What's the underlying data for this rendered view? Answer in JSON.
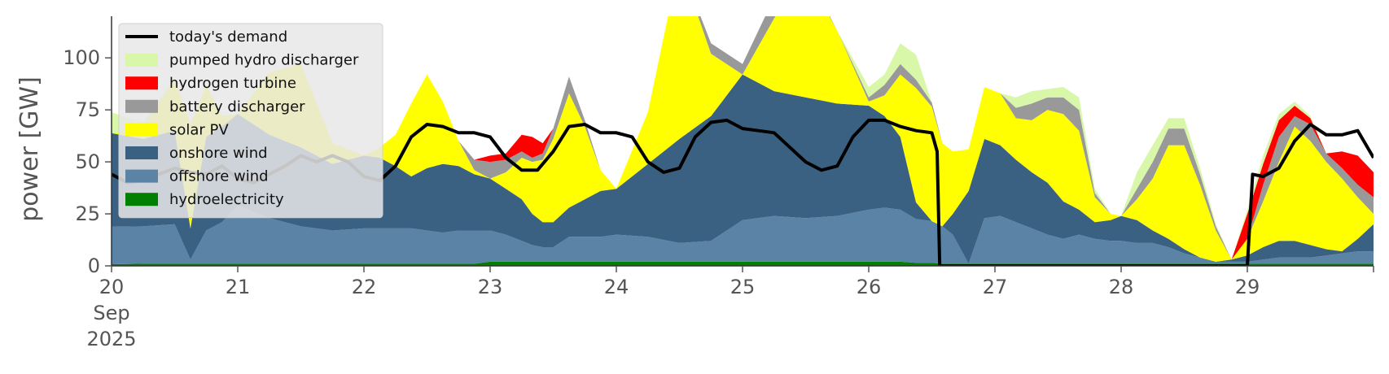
{
  "chart_data": {
    "type": "area",
    "title": "",
    "xlabel": "",
    "ylabel": "power [GW]",
    "ylim": [
      0,
      120
    ],
    "xlim": [
      0,
      240
    ],
    "x_unit": "hours since 20 Sep 2025 00:00",
    "yticks": [
      0,
      25,
      50,
      75,
      100
    ],
    "xticks": [
      {
        "label": "20",
        "hour": 0
      },
      {
        "label": "21",
        "hour": 24
      },
      {
        "label": "22",
        "hour": 48
      },
      {
        "label": "23",
        "hour": 72
      },
      {
        "label": "24",
        "hour": 96
      },
      {
        "label": "25",
        "hour": 120
      },
      {
        "label": "26",
        "hour": 144
      },
      {
        "label": "27",
        "hour": 168
      },
      {
        "label": "28",
        "hour": 192
      },
      {
        "label": "29",
        "hour": 216
      }
    ],
    "xtick_sublabels": [
      "Sep",
      "2025"
    ],
    "grid": false,
    "legend_position": "top-left",
    "legend": [
      {
        "label": "today's demand",
        "type": "line",
        "color": "#000000"
      },
      {
        "label": "pumped hydro discharger",
        "type": "patch",
        "color": "#d9f7a8"
      },
      {
        "label": "hydrogen turbine",
        "type": "patch",
        "color": "#ff0000"
      },
      {
        "label": "battery discharger",
        "type": "patch",
        "color": "#999999"
      },
      {
        "label": "solar PV",
        "type": "patch",
        "color": "#ffff00"
      },
      {
        "label": "onshore wind",
        "type": "patch",
        "color": "#3b6182"
      },
      {
        "label": "offshore wind",
        "type": "patch",
        "color": "#5a83a5"
      },
      {
        "label": "hydroelectricity",
        "type": "patch",
        "color": "#008000"
      }
    ],
    "stack_x_hours": [
      0,
      6,
      12,
      15,
      18,
      21,
      24,
      30,
      36,
      42,
      48,
      51,
      54,
      57,
      60,
      63,
      66,
      69,
      72,
      75,
      78,
      80,
      82,
      84,
      87,
      90,
      93,
      96,
      102,
      108,
      114,
      120,
      126,
      132,
      138,
      144,
      147,
      150,
      153,
      156,
      158,
      160,
      163,
      166,
      169,
      172,
      175,
      178,
      181,
      184,
      187,
      190,
      192,
      195,
      198,
      201,
      204,
      207,
      210,
      213,
      216,
      219,
      222,
      225,
      228,
      231,
      234,
      237,
      240
    ],
    "series": [
      {
        "name": "hydroelectricity",
        "color": "#008000",
        "values": [
          0.8,
          1,
          1,
          1,
          1,
          1,
          1,
          1,
          1,
          1,
          1,
          1,
          1,
          1,
          1,
          1,
          1,
          1,
          2,
          2,
          2,
          2,
          2,
          2,
          2,
          2,
          2,
          2,
          2,
          2,
          2,
          2,
          2,
          2,
          2,
          2,
          2,
          2,
          1.5,
          1.5,
          1,
          1,
          1,
          1,
          1,
          1,
          1,
          1,
          1,
          1,
          1,
          1,
          1,
          1,
          1,
          1,
          1,
          1,
          1,
          1,
          1,
          1,
          1,
          1,
          1,
          1,
          1,
          1,
          1
        ]
      },
      {
        "name": "offshore wind",
        "color": "#5a83a5",
        "values": [
          18,
          18,
          19,
          2,
          16,
          20,
          28,
          22,
          18,
          16,
          17,
          17,
          17,
          17,
          16,
          15,
          16,
          16,
          15,
          13,
          10,
          8,
          7,
          7,
          12,
          12,
          12,
          13,
          12,
          9,
          10,
          20,
          22,
          21,
          22,
          25,
          26,
          25,
          21,
          20,
          18,
          14,
          0,
          22,
          23,
          20,
          17,
          14,
          12,
          14,
          12,
          11,
          11,
          10,
          10,
          8,
          5,
          3,
          1,
          1,
          1,
          2,
          3,
          3,
          3,
          4,
          5,
          6,
          6
        ]
      },
      {
        "name": "onshore wind",
        "color": "#3b6182",
        "values": [
          45,
          42,
          45,
          15,
          45,
          46,
          44,
          40,
          38,
          32,
          35,
          34,
          30,
          25,
          30,
          33,
          31,
          27,
          25,
          22,
          20,
          15,
          12,
          12,
          14,
          18,
          22,
          22,
          35,
          50,
          60,
          70,
          60,
          58,
          54,
          50,
          44,
          35,
          8,
          0,
          0,
          10,
          35,
          38,
          34,
          30,
          27,
          25,
          18,
          12,
          8,
          10,
          12,
          11,
          6,
          4,
          2,
          0,
          0,
          1,
          3,
          6,
          8,
          8,
          6,
          3,
          1,
          6,
          13
        ]
      },
      {
        "name": "solar PV",
        "color": "#ffff00",
        "values": [
          0,
          5,
          25,
          50,
          25,
          5,
          0,
          30,
          40,
          10,
          0,
          5,
          15,
          35,
          45,
          30,
          12,
          2,
          0,
          8,
          20,
          25,
          30,
          40,
          55,
          35,
          10,
          0,
          25,
          85,
          30,
          0,
          35,
          60,
          35,
          2,
          10,
          30,
          55,
          55,
          40,
          30,
          20,
          25,
          25,
          20,
          25,
          35,
          42,
          38,
          12,
          3,
          0,
          10,
          25,
          45,
          50,
          35,
          15,
          0,
          8,
          22,
          38,
          55,
          50,
          42,
          35,
          20,
          5
        ]
      },
      {
        "name": "battery discharger",
        "color": "#999999",
        "values": [
          0,
          0,
          0,
          0,
          0,
          0,
          0,
          0,
          0,
          0,
          0,
          0,
          0,
          0,
          0,
          0,
          0,
          5,
          8,
          6,
          3,
          2,
          3,
          5,
          8,
          3,
          0,
          0,
          0,
          0,
          5,
          5,
          10,
          2,
          0,
          2,
          5,
          5,
          4,
          2,
          0,
          0,
          0,
          0,
          0,
          5,
          8,
          6,
          8,
          10,
          2,
          0,
          0,
          5,
          8,
          8,
          8,
          5,
          2,
          0,
          0,
          8,
          12,
          5,
          8,
          4,
          5,
          6,
          8
        ]
      },
      {
        "name": "hydrogen turbine",
        "color": "#ff0000",
        "values": [
          0,
          0,
          0,
          0,
          0,
          0,
          0,
          0,
          0,
          0,
          0,
          0,
          0,
          0,
          0,
          0,
          0,
          0,
          3,
          3,
          8,
          10,
          5,
          0,
          0,
          0,
          0,
          0,
          0,
          0,
          0,
          0,
          0,
          0,
          0,
          0,
          0,
          0,
          0,
          0,
          0,
          0,
          0,
          0,
          0,
          0,
          0,
          0,
          0,
          0,
          0,
          0,
          0,
          0,
          0,
          0,
          0,
          0,
          0,
          0,
          12,
          10,
          8,
          5,
          3,
          0,
          8,
          14,
          12
        ]
      },
      {
        "name": "pumped hydro discharger",
        "color": "#d9f7a8",
        "values": [
          10,
          3,
          0,
          0,
          0,
          0,
          0,
          0,
          0,
          0,
          0,
          0,
          0,
          0,
          0,
          0,
          0,
          0,
          0,
          0,
          0,
          0,
          0,
          0,
          0,
          0,
          0,
          0,
          0,
          0,
          0,
          0,
          0,
          0,
          0,
          5,
          5,
          10,
          12,
          0,
          0,
          0,
          0,
          0,
          0,
          5,
          6,
          4,
          5,
          6,
          2,
          0,
          0,
          8,
          8,
          5,
          5,
          3,
          1,
          0,
          2,
          4,
          3,
          2,
          1,
          0,
          0,
          0,
          0
        ]
      }
    ],
    "demand": {
      "name": "today's demand",
      "color": "#000000",
      "x": [
        0,
        3,
        6,
        9,
        12,
        15,
        18,
        21,
        24,
        27,
        30,
        33,
        36,
        39,
        42,
        45,
        48,
        51,
        54,
        57,
        60,
        63,
        66,
        69,
        72,
        75,
        78,
        81,
        84,
        87,
        90,
        93,
        96,
        99,
        102,
        105,
        108,
        111,
        114,
        117,
        120,
        123,
        126,
        129,
        132,
        135,
        138,
        141,
        144,
        147,
        150,
        153,
        156,
        157,
        157.5,
        166,
        171,
        175,
        180,
        190,
        200,
        210,
        215,
        216,
        217,
        219,
        222,
        225,
        228,
        231,
        234,
        237,
        240
      ],
      "y": [
        44,
        40,
        41,
        44,
        47,
        45,
        44,
        48,
        42,
        40,
        44,
        48,
        53,
        50,
        53,
        50,
        43,
        41,
        48,
        62,
        68,
        67,
        64,
        64,
        62,
        52,
        46,
        46,
        55,
        67,
        68,
        64,
        64,
        62,
        50,
        45,
        47,
        62,
        69,
        70,
        66,
        65,
        64,
        57,
        50,
        46,
        48,
        62,
        70,
        70,
        67,
        65,
        64,
        55,
        0,
        0,
        0,
        0,
        0,
        0,
        0,
        0,
        0,
        0,
        44,
        43,
        47,
        60,
        68,
        63,
        63,
        65,
        52
      ]
    }
  }
}
